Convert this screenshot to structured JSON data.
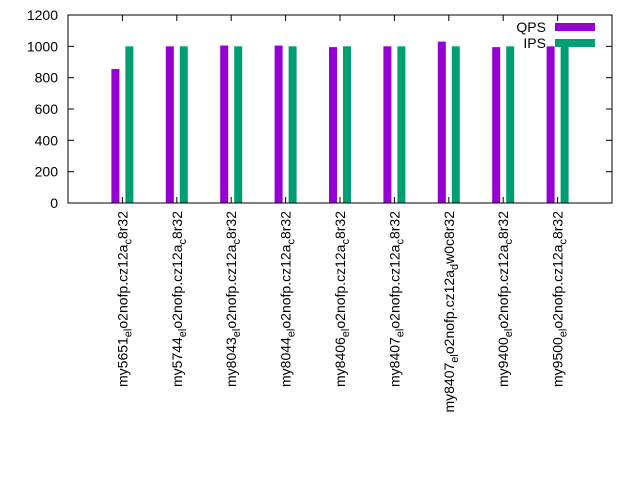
{
  "chart_data": {
    "type": "bar",
    "title": "",
    "xlabel": "",
    "ylabel": "",
    "ylim": [
      0,
      1200
    ],
    "yticks": [
      0,
      200,
      400,
      600,
      800,
      1000,
      1200
    ],
    "legend_position": "top-right",
    "categories": [
      {
        "base": "my5651",
        "sub": "el",
        "a": "o",
        "b": "2nofp.cz12a",
        "c": "c",
        "d": "8r32"
      },
      {
        "base": "my5744",
        "sub": "el",
        "a": "o",
        "b": "2nofp.cz12a",
        "c": "c",
        "d": "8r32"
      },
      {
        "base": "my8043",
        "sub": "el",
        "a": "o",
        "b": "2nofp.cz12a",
        "c": "c",
        "d": "8r32"
      },
      {
        "base": "my8044",
        "sub": "el",
        "a": "o",
        "b": "2nofp.cz12a",
        "c": "c",
        "d": "8r32"
      },
      {
        "base": "my8406",
        "sub": "el",
        "a": "o",
        "b": "2nofp.cz12a",
        "c": "c",
        "d": "8r32"
      },
      {
        "base": "my8407",
        "sub": "el",
        "a": "o",
        "b": "2nofp.cz12a",
        "c": "c",
        "d": "8r32"
      },
      {
        "base": "my8407",
        "sub": "el",
        "a": "o",
        "b": "2nofp.cz12a",
        "c": "d",
        "d": "w0c8r32"
      },
      {
        "base": "my9400",
        "sub": "el",
        "a": "o",
        "b": "2nofp.cz12a",
        "c": "c",
        "d": "8r32"
      },
      {
        "base": "my9500",
        "sub": "el",
        "a": "o",
        "b": "2nofp.cz12a",
        "c": "c",
        "d": "8r32"
      }
    ],
    "series": [
      {
        "name": "QPS",
        "color": "#9400d3",
        "values": [
          855,
          1000,
          1005,
          1005,
          995,
          1000,
          1030,
          995,
          1000
        ]
      },
      {
        "name": "IPS",
        "color": "#009e73",
        "values": [
          1000,
          1000,
          1000,
          1000,
          1000,
          1000,
          1000,
          1000,
          1000
        ]
      }
    ]
  }
}
